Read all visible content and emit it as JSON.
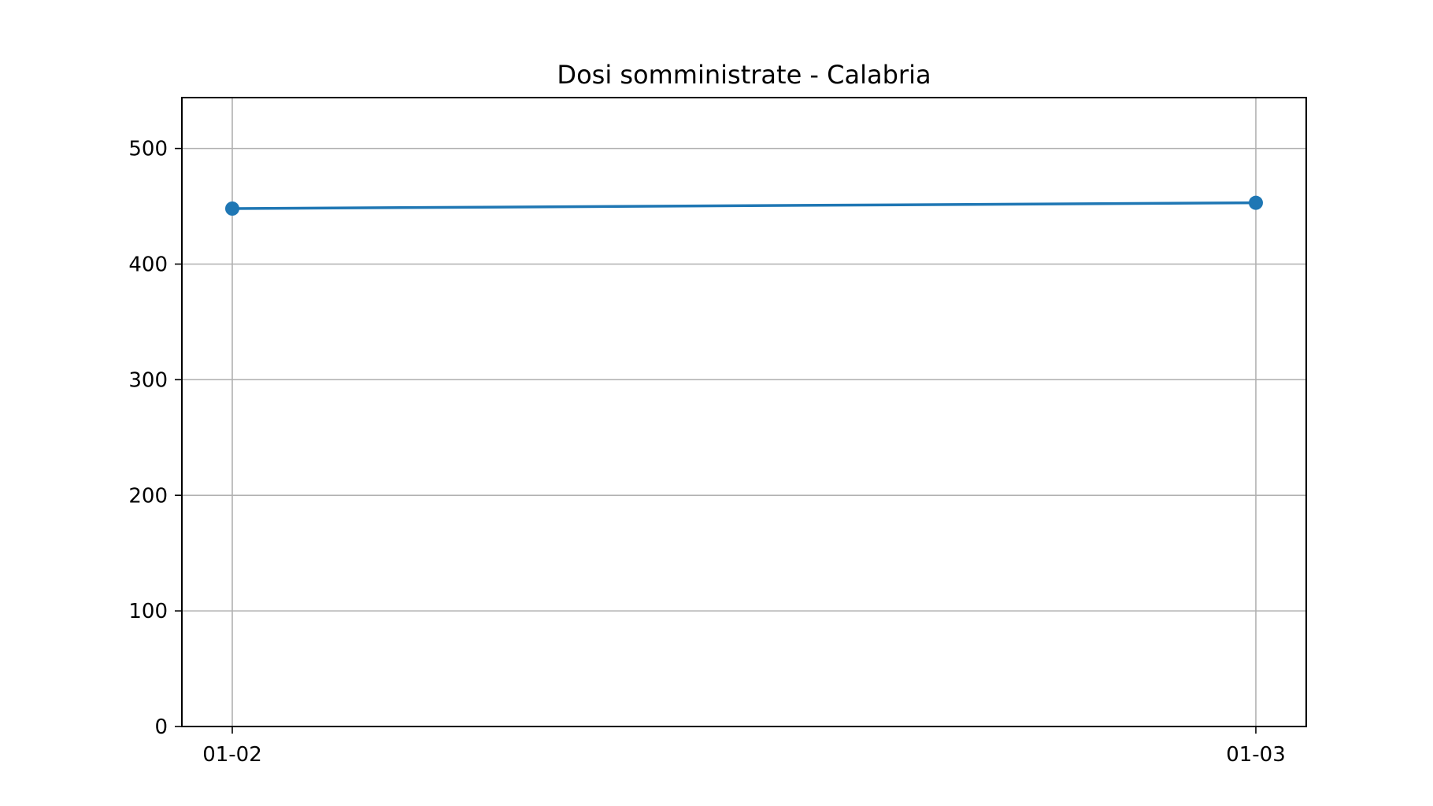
{
  "chart_data": {
    "type": "line",
    "title": "Dosi somministrate - Calabria",
    "xlabel": "",
    "ylabel": "",
    "categories": [
      "01-02",
      "01-03"
    ],
    "series": [
      {
        "values": [
          448,
          453
        ],
        "color": "#1f77b4",
        "marker": "circle"
      }
    ],
    "ylim": [
      0,
      544
    ],
    "yticks": [
      0,
      100,
      200,
      300,
      400,
      500
    ],
    "grid": true,
    "legend": "none"
  }
}
